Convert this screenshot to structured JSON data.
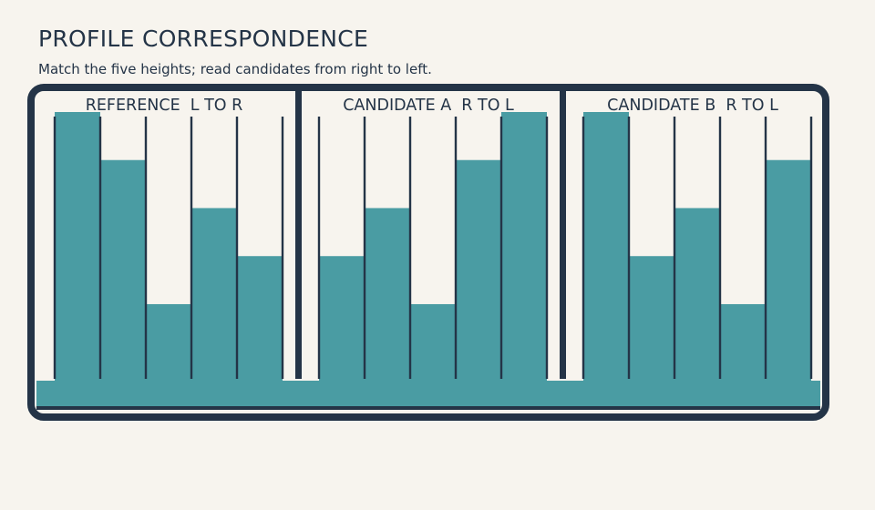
{
  "title": "PROFILE CORRESPONDENCE",
  "subtitle": "Match the five heights; read candidates from right to left.",
  "colors": {
    "background": "#f7f4ee",
    "frame": "#243447",
    "bar": "#4a9ca3",
    "slot": "#f7f4ee"
  },
  "panels": [
    {
      "label": "REFERENCE  L TO R",
      "heights": [
        1.0,
        0.82,
        0.28,
        0.64,
        0.46
      ]
    },
    {
      "label": "CANDIDATE A  R TO L",
      "heights": [
        0.46,
        0.64,
        0.28,
        0.82,
        1.0
      ]
    },
    {
      "label": "CANDIDATE B  R TO L",
      "heights": [
        1.0,
        0.46,
        0.64,
        0.28,
        0.82
      ]
    }
  ]
}
